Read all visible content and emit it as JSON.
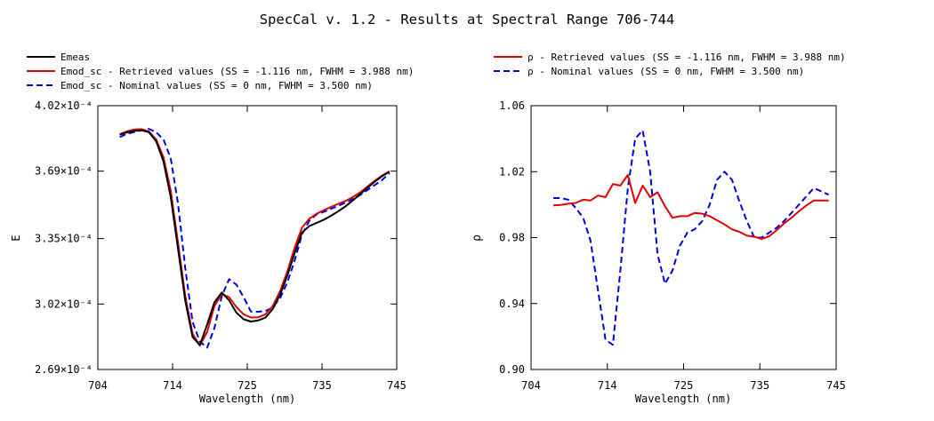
{
  "title": "SpecCal v. 1.2 - Results at Spectral Range 706-744",
  "colors": {
    "black": "#000000",
    "red": "#e00000",
    "blue": "#0000e0"
  },
  "chart_data": [
    {
      "type": "line",
      "xlabel": "Wavelength (nm)",
      "ylabel": "E",
      "xlim": [
        704,
        745
      ],
      "ylim": [
        0.000269,
        0.000402
      ],
      "xticks": [
        "704",
        "714",
        "725",
        "735",
        "745"
      ],
      "yticks": [
        "2.69×10⁻⁴",
        "3.02×10⁻⁴",
        "3.35×10⁻⁴",
        "3.69×10⁻⁴",
        "4.02×10⁻⁴"
      ],
      "ytick_values": [
        0.000269,
        0.000302,
        0.000335,
        0.000369,
        0.000402
      ],
      "legend": "top-left, above plot",
      "series": [
        {
          "name": "Emeas",
          "color": "#000000",
          "style": "solid",
          "x": [
            707,
            708,
            709,
            710,
            711,
            712,
            713,
            714,
            715,
            716,
            717,
            718,
            719,
            720,
            721,
            722,
            723,
            724,
            725,
            726,
            727,
            728,
            729,
            730,
            731,
            732,
            733,
            734,
            735,
            736,
            737,
            738,
            739,
            740,
            741,
            742,
            743,
            744
          ],
          "y": [
            0.0003874,
            0.0003885,
            0.0003893,
            0.0003896,
            0.0003886,
            0.000384,
            0.0003739,
            0.0003558,
            0.00033,
            0.0003036,
            0.0002854,
            0.0002813,
            0.0002917,
            0.0003029,
            0.0003078,
            0.0003039,
            0.0002977,
            0.0002943,
            0.0002932,
            0.0002937,
            0.0002952,
            0.0002995,
            0.0003067,
            0.0003165,
            0.0003278,
            0.000338,
            0.0003413,
            0.0003429,
            0.0003445,
            0.0003465,
            0.0003488,
            0.0003513,
            0.0003543,
            0.0003575,
            0.0003606,
            0.0003637,
            0.0003665,
            0.0003687
          ]
        },
        {
          "name": "Emod_sc - Retrieved values (SS = -1.116 nm, FWHM =  3.988 nm)",
          "color": "#e00000",
          "style": "solid",
          "x": [
            707,
            708,
            709,
            710,
            711,
            712,
            713,
            714,
            715,
            716,
            717,
            718,
            719,
            720,
            721,
            722,
            723,
            724,
            725,
            726,
            727,
            728,
            729,
            730,
            731,
            732,
            733,
            734,
            735,
            736,
            737,
            738,
            739,
            740,
            741,
            742,
            743,
            744
          ],
          "y": [
            0.0003876,
            0.0003891,
            0.00039,
            0.0003902,
            0.000389,
            0.000385,
            0.000376,
            0.000359,
            0.000333,
            0.000306,
            0.000287,
            0.000281,
            0.000288,
            0.000301,
            0.000307,
            0.0003055,
            0.0003005,
            0.0002968,
            0.0002952,
            0.0002953,
            0.0002968,
            0.000301,
            0.0003085,
            0.0003185,
            0.0003305,
            0.0003405,
            0.000345,
            0.0003475,
            0.0003493,
            0.000351,
            0.0003525,
            0.000354,
            0.000356,
            0.0003583,
            0.0003613,
            0.0003642,
            0.0003668,
            0.0003689
          ]
        },
        {
          "name": "Emod_sc - Nominal values (SS = 0 nm, FWHM =  3.500 nm)",
          "color": "#0000e0",
          "style": "dashed",
          "x": [
            707,
            708,
            709,
            710,
            711,
            712,
            713,
            714,
            715,
            716,
            717,
            718,
            719,
            720,
            721,
            722,
            723,
            724,
            725,
            726,
            727,
            728,
            729,
            730,
            731,
            732,
            733,
            734,
            735,
            736,
            737,
            738,
            739,
            740,
            741,
            742,
            743,
            744
          ],
          "y": [
            0.0003862,
            0.0003878,
            0.0003887,
            0.0003896,
            0.0003903,
            0.0003886,
            0.000385,
            0.0003753,
            0.0003527,
            0.00032,
            0.000293,
            0.000283,
            0.00028,
            0.00029,
            0.000306,
            0.0003145,
            0.0003118,
            0.0003054,
            0.0002982,
            0.0002981,
            0.0002985,
            0.0003003,
            0.000305,
            0.000313,
            0.000324,
            0.000337,
            0.000344,
            0.0003472,
            0.0003485,
            0.00035,
            0.0003515,
            0.0003532,
            0.000355,
            0.000357,
            0.0003595,
            0.000362,
            0.0003645,
            0.000368
          ]
        }
      ]
    },
    {
      "type": "line",
      "xlabel": "Wavelength (nm)",
      "ylabel": "ρ",
      "xlim": [
        704,
        745
      ],
      "ylim": [
        0.9,
        1.06
      ],
      "xticks": [
        "704",
        "714",
        "725",
        "735",
        "745"
      ],
      "yticks": [
        "0.90",
        "0.94",
        "0.98",
        "1.02",
        "1.06"
      ],
      "ytick_values": [
        0.9,
        0.94,
        0.98,
        1.02,
        1.06
      ],
      "legend": "top-left, above plot",
      "series": [
        {
          "name": "ρ - Retrieved values (SS = -1.116 nm, FWHM =  3.988 nm)",
          "color": "#e00000",
          "style": "solid",
          "x": [
            707,
            708,
            709,
            710,
            711,
            712,
            713,
            714,
            715,
            716,
            717,
            718,
            719,
            720,
            721,
            722,
            723,
            724,
            725,
            726,
            727,
            728,
            729,
            730,
            731,
            732,
            733,
            734,
            735,
            736,
            737,
            738,
            739,
            740,
            741,
            742,
            743,
            744
          ],
          "y": [
            0.9995,
            0.9998,
            1.0005,
            1.001,
            1.003,
            1.0025,
            1.0055,
            1.0045,
            1.0125,
            1.0115,
            1.018,
            1.001,
            1.0115,
            1.0045,
            1.0075,
            0.999,
            0.992,
            0.993,
            0.993,
            0.995,
            0.9945,
            0.993,
            0.9905,
            0.988,
            0.985,
            0.9835,
            0.9812,
            0.9805,
            0.9792,
            0.9808,
            0.9845,
            0.9885,
            0.992,
            0.996,
            0.9995,
            1.0025,
            1.0025,
            1.0025
          ]
        },
        {
          "name": "ρ - Nominal values (SS = 0 nm, FWHM =  3.500 nm)",
          "color": "#0000e0",
          "style": "dashed",
          "x": [
            707,
            708,
            709,
            710,
            711,
            712,
            713,
            714,
            715,
            716,
            717,
            718,
            719,
            720,
            721,
            722,
            723,
            724,
            725,
            726,
            727,
            728,
            729,
            730,
            731,
            732,
            733,
            734,
            735,
            736,
            737,
            738,
            739,
            740,
            741,
            742,
            743,
            744
          ],
          "y": [
            1.004,
            1.004,
            1.003,
            0.998,
            0.992,
            0.978,
            0.948,
            0.918,
            0.915,
            0.96,
            1.01,
            1.04,
            1.045,
            1.02,
            0.97,
            0.952,
            0.96,
            0.975,
            0.983,
            0.985,
            0.99,
            1.0,
            1.015,
            1.02,
            1.015,
            1.002,
            0.99,
            0.98,
            0.98,
            0.983,
            0.986,
            0.99,
            0.995,
            1.0,
            1.005,
            1.01,
            1.008,
            1.006
          ]
        }
      ]
    }
  ]
}
